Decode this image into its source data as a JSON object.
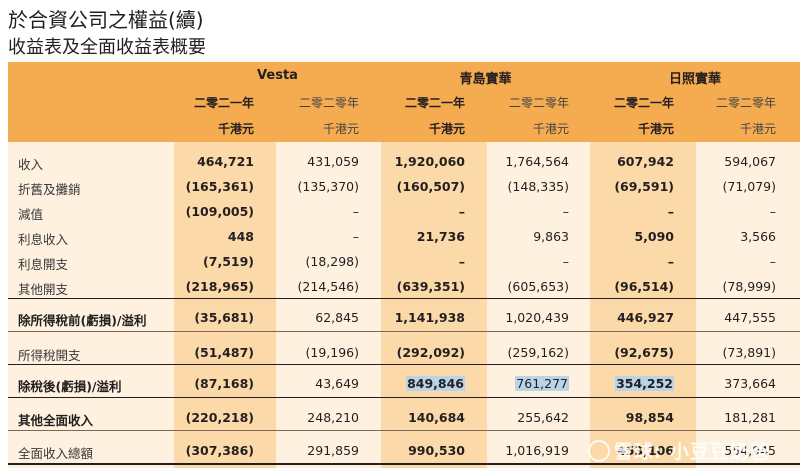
{
  "title": "於合資公司之權益(續)",
  "subtitle": "收益表及全面收益表概要",
  "groups": [
    "Vesta",
    "青島實華",
    "日照實華"
  ],
  "years": [
    "二零二一年",
    "二零二零年",
    "二零二一年",
    "二零二零年",
    "二零二一年",
    "二零二零年"
  ],
  "units": [
    "千港元",
    "千港元",
    "千港元",
    "千港元",
    "千港元",
    "千港元"
  ],
  "rows": [
    {
      "label": "收入",
      "values": [
        "464,721",
        "431,059",
        "1,920,060",
        "1,764,564",
        "607,942",
        "594,067"
      ]
    },
    {
      "label": "折舊及攤銷",
      "values": [
        "(165,361)",
        "(135,370)",
        "(160,507)",
        "(148,335)",
        "(69,591)",
        "(71,079)"
      ]
    },
    {
      "label": "減值",
      "values": [
        "(109,005)",
        "–",
        "–",
        "–",
        "–",
        "–"
      ]
    },
    {
      "label": "利息收入",
      "values": [
        "448",
        "–",
        "21,736",
        "9,863",
        "5,090",
        "3,566"
      ]
    },
    {
      "label": "利息開支",
      "values": [
        "(7,519)",
        "(18,298)",
        "–",
        "–",
        "–",
        "–"
      ]
    },
    {
      "label": "其他開支",
      "values": [
        "(218,965)",
        "(214,546)",
        "(639,351)",
        "(605,653)",
        "(96,514)",
        "(78,999)"
      ]
    },
    {
      "label": "除所得稅前(虧損)/溢利",
      "values": [
        "(35,681)",
        "62,845",
        "1,141,938",
        "1,020,439",
        "446,927",
        "447,555"
      ]
    },
    {
      "label": "所得稅開支",
      "values": [
        "(51,487)",
        "(19,196)",
        "(292,092)",
        "(259,162)",
        "(92,675)",
        "(73,891)"
      ]
    },
    {
      "label": "除稅後(虧損)/溢利",
      "values": [
        "(87,168)",
        "43,649",
        "849,846",
        "761,277",
        "354,252",
        "373,664"
      ]
    },
    {
      "label": "其他全面收入",
      "values": [
        "(220,218)",
        "248,210",
        "140,684",
        "255,642",
        "98,854",
        "181,281"
      ]
    },
    {
      "label": "全面收入總額",
      "values": [
        "(307,386)",
        "291,859",
        "990,530",
        "1,016,919",
        "453,106",
        "554,945"
      ]
    }
  ],
  "watermark": "雪球: 小豆豆奶爸",
  "colors": {
    "header": "#f5ab4f",
    "body": "#fef1df",
    "highlight_col": "#fcd9a8",
    "highlight_cell": "#b9d4e6"
  }
}
